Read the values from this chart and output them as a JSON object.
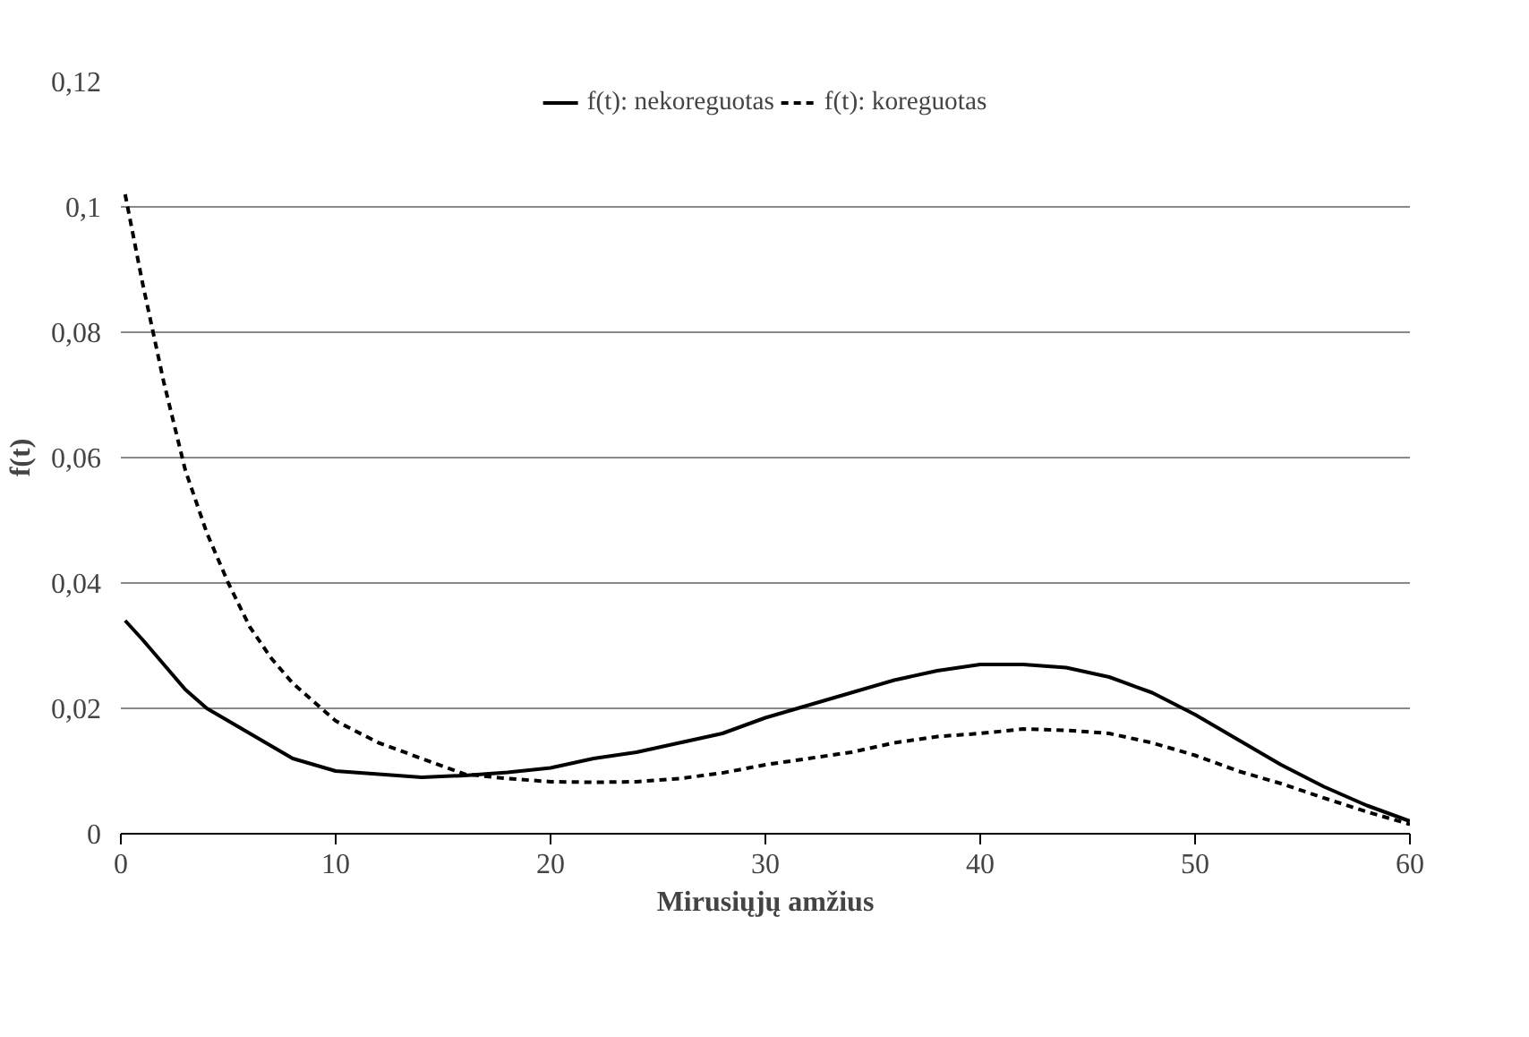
{
  "chart_data": {
    "type": "line",
    "xlabel": "Mirusiųjų amžius",
    "ylabel": "f(t)",
    "x": [
      0.2,
      1,
      2,
      3,
      4,
      5,
      6,
      7,
      8,
      9,
      10,
      12,
      14,
      16,
      18,
      20,
      22,
      24,
      26,
      28,
      30,
      32,
      34,
      36,
      38,
      40,
      42,
      44,
      46,
      48,
      50,
      52,
      54,
      56,
      58,
      60
    ],
    "series": [
      {
        "name": "f(t): nekoreguotas",
        "color": "#000000",
        "line_style": "solid",
        "values": [
          0.034,
          0.031,
          0.027,
          0.023,
          0.02,
          0.018,
          0.016,
          0.014,
          0.012,
          0.011,
          0.01,
          0.0095,
          0.009,
          0.0093,
          0.0098,
          0.0105,
          0.012,
          0.013,
          0.0145,
          0.016,
          0.0185,
          0.0205,
          0.0225,
          0.0245,
          0.026,
          0.027,
          0.027,
          0.0265,
          0.025,
          0.0225,
          0.019,
          0.015,
          0.011,
          0.0075,
          0.0045,
          0.002
        ]
      },
      {
        "name": "f(t): koreguotas",
        "color": "#000000",
        "line_style": "dashed",
        "values": [
          0.102,
          0.088,
          0.072,
          0.058,
          0.048,
          0.04,
          0.033,
          0.028,
          0.024,
          0.021,
          0.018,
          0.0145,
          0.012,
          0.0095,
          0.0088,
          0.0083,
          0.0082,
          0.0083,
          0.0088,
          0.0097,
          0.011,
          0.012,
          0.013,
          0.0145,
          0.0155,
          0.016,
          0.0167,
          0.0165,
          0.016,
          0.0145,
          0.0125,
          0.01,
          0.008,
          0.0057,
          0.0035,
          0.0015
        ]
      }
    ],
    "xlim": [
      0,
      60
    ],
    "xticks": [
      0,
      10,
      20,
      30,
      40,
      50,
      60
    ],
    "ylim": [
      0,
      0.12
    ],
    "yticks": [
      0,
      {
        "value": 0.02,
        "label": "0,02"
      },
      {
        "value": 0.04,
        "label": "0,04"
      },
      {
        "value": 0.06,
        "label": "0,06"
      },
      {
        "value": 0.08,
        "label": "0,08"
      },
      {
        "value": 0.1,
        "label": "0,1"
      },
      {
        "value": 0.12,
        "label": "0,12"
      }
    ],
    "grid": "y",
    "legend": "top"
  }
}
